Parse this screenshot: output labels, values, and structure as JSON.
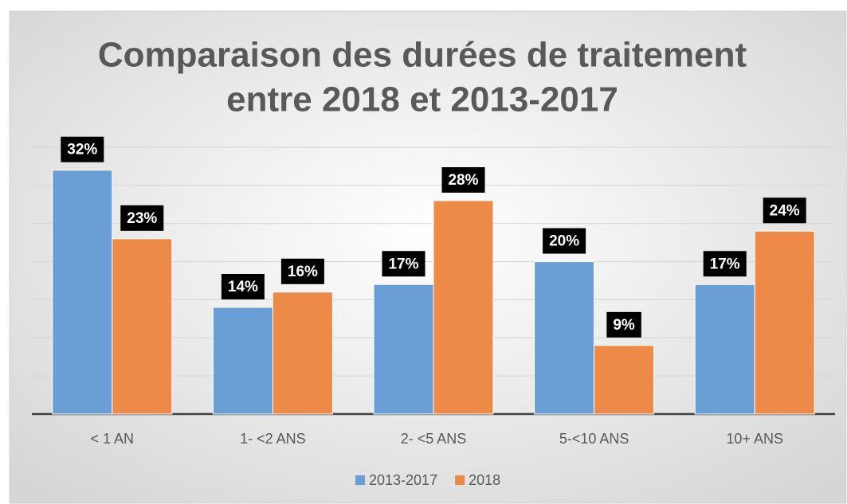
{
  "chart_data": {
    "type": "bar",
    "title": [
      "Comparaison des durées de traitement",
      "entre 2018 et 2013-2017"
    ],
    "categories": [
      "< 1 AN",
      "1- <2 ANS",
      "2- <5 ANS",
      "5-<10  ANS",
      "10+ ANS"
    ],
    "series": [
      {
        "name": "2013-2017",
        "color": "#6a9fd6",
        "values": [
          32,
          14,
          17,
          20,
          17
        ],
        "value_labels": [
          "32%",
          "14%",
          "17%",
          "20%",
          "17%"
        ]
      },
      {
        "name": "2018",
        "color": "#ee8a47",
        "values": [
          23,
          16,
          28,
          9,
          24
        ],
        "value_labels": [
          "23%",
          "16%",
          "28%",
          "9%",
          "24%"
        ]
      }
    ],
    "ylim": [
      0,
      35
    ],
    "yticks": [
      0,
      5,
      10,
      15,
      20,
      25,
      30,
      35
    ],
    "grid": true,
    "legend": "bottom"
  }
}
